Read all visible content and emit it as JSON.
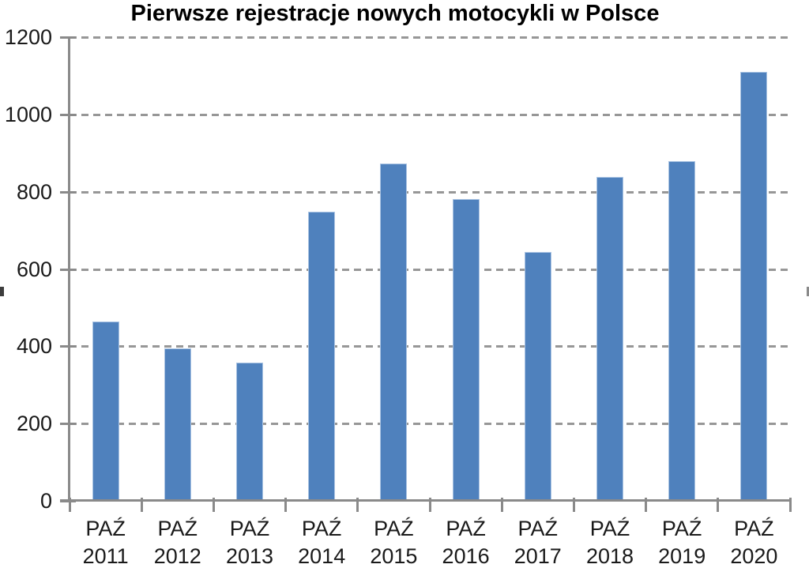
{
  "title": "Pierwsze rejestracje nowych motocykli w Polsce",
  "colors": {
    "bar_fill": "#4f81bd",
    "bar_edge": "#a9c3e2",
    "axis": "#8a8a8a",
    "gridline": "#979797",
    "text": "#1a1a1a",
    "title_text": "#000000",
    "background": "#ffffff"
  },
  "chart_data": {
    "type": "bar",
    "title": "Pierwsze rejestracje nowych motocykli w Polsce",
    "categories": [
      {
        "month": "PAŹ",
        "year": "2011"
      },
      {
        "month": "PAŹ",
        "year": "2012"
      },
      {
        "month": "PAŹ",
        "year": "2013"
      },
      {
        "month": "PAŹ",
        "year": "2014"
      },
      {
        "month": "PAŹ",
        "year": "2015"
      },
      {
        "month": "PAŹ",
        "year": "2016"
      },
      {
        "month": "PAŹ",
        "year": "2017"
      },
      {
        "month": "PAŹ",
        "year": "2018"
      },
      {
        "month": "PAŹ",
        "year": "2019"
      },
      {
        "month": "PAŹ",
        "year": "2020"
      }
    ],
    "values": [
      465,
      395,
      357,
      748,
      873,
      780,
      645,
      839,
      880,
      1110
    ],
    "xlabel": "",
    "ylabel": "",
    "ylim": [
      0,
      1200
    ],
    "yticks": [
      0,
      200,
      400,
      600,
      800,
      1000,
      1200
    ],
    "grid": "horizontal-dashed",
    "legend": "none",
    "bar_color": "#4f81bd"
  }
}
